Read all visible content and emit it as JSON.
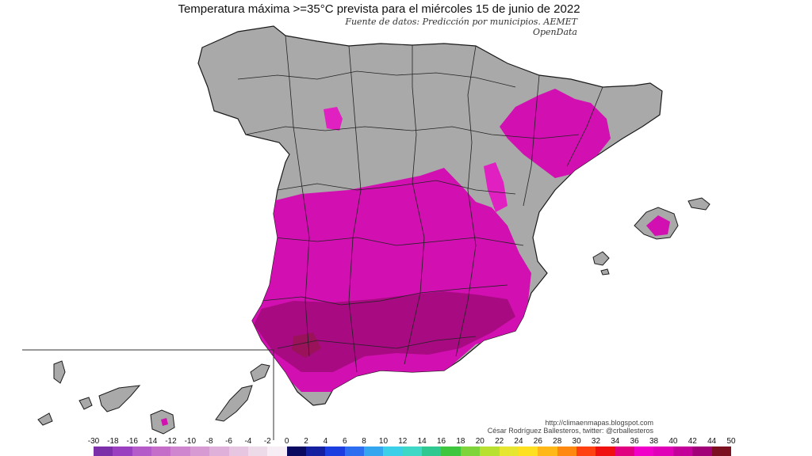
{
  "map": {
    "title": "Temperatura máxima >=35°C prevista para el miércoles 15 de junio de 2022",
    "source": "Fuente de datos: Predicción por municipios. AEMET OpenData",
    "credit_url": "http://climaenmapas.blogspot.com",
    "credit_author": "César Rodríguez Ballesteros, twitter: @crballesteros"
  },
  "legend": {
    "ticks": [
      "-30",
      "-18",
      "-16",
      "-14",
      "-12",
      "-10",
      "-8",
      "-6",
      "-4",
      "-2",
      "0",
      "2",
      "4",
      "6",
      "8",
      "10",
      "12",
      "14",
      "16",
      "18",
      "20",
      "22",
      "24",
      "26",
      "28",
      "30",
      "32",
      "34",
      "36",
      "38",
      "40",
      "42",
      "44",
      "50"
    ],
    "colors": [
      "#7b2fa8",
      "#9a3fc0",
      "#b45ac9",
      "#c56ec9",
      "#cf86cf",
      "#d79ad3",
      "#dfb0d9",
      "#e6c6e1",
      "#eedbea",
      "#f6eef4",
      "#0a0a60",
      "#1420a0",
      "#1c3ee0",
      "#2d6df0",
      "#34a6f0",
      "#3ccfe8",
      "#3fd7c6",
      "#2fc890",
      "#3ec63e",
      "#7ed43a",
      "#b8e030",
      "#e6e630",
      "#ffe020",
      "#ffb818",
      "#ff8810",
      "#ff4010",
      "#f01010",
      "#e00080",
      "#f000c8",
      "#e000b8",
      "#c4009a",
      "#a20078",
      "#7a1020"
    ]
  }
}
